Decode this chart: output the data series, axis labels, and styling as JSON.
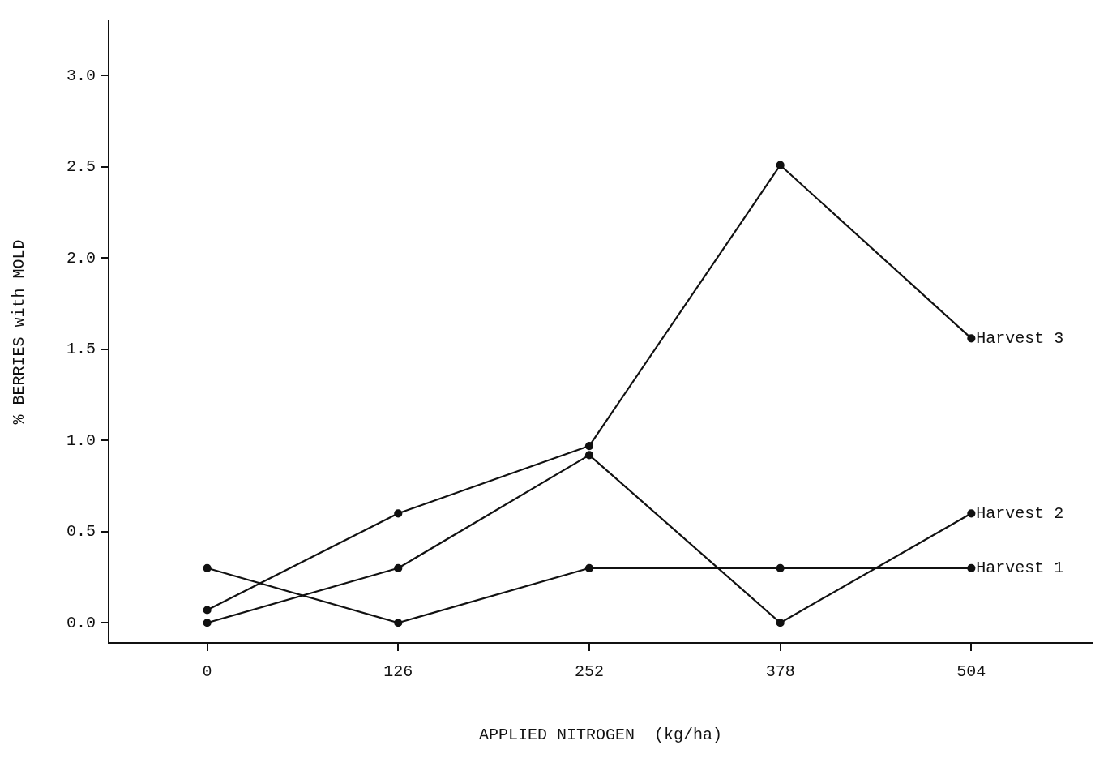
{
  "chart_data": {
    "type": "line",
    "xlabel": "APPLIED NITROGEN  (kg/ha)",
    "ylabel": "% BERRIES with MOLD",
    "x": [
      0,
      126,
      252,
      378,
      504
    ],
    "series": [
      {
        "name": "Harvest 3",
        "color": "#111111",
        "values": [
          0.07,
          0.6,
          0.97,
          2.51,
          1.56
        ]
      },
      {
        "name": "Harvest 2",
        "color": "#111111",
        "values": [
          0.0,
          0.3,
          0.92,
          0.0,
          0.6
        ]
      },
      {
        "name": "Harvest 1",
        "color": "#111111",
        "values": [
          0.3,
          0.0,
          0.3,
          0.3,
          0.3
        ]
      }
    ],
    "xlim": [
      -65,
      584
    ],
    "xticks": [
      0,
      126,
      252,
      378,
      504
    ],
    "ylim": [
      -0.11,
      3.3
    ],
    "yticks": [
      {
        "value": 0,
        "label": "0.0"
      },
      {
        "value": 0.5,
        "label": "0.5"
      },
      {
        "value": 1,
        "label": "1.0"
      },
      {
        "value": 1.5,
        "label": "1.5"
      },
      {
        "value": 2,
        "label": "2.0"
      },
      {
        "value": 2.5,
        "label": "2.5"
      },
      {
        "value": 3,
        "label": "3.0"
      }
    ],
    "grid": false,
    "legend": false,
    "marker": "circle",
    "line_style": "solid"
  }
}
